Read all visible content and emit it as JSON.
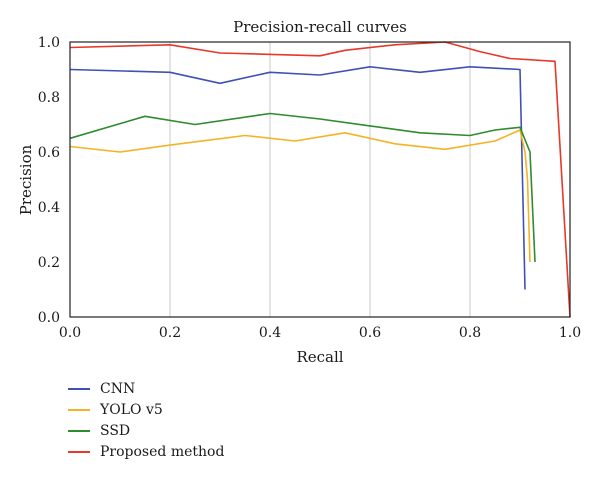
{
  "chart_data": {
    "type": "line",
    "title": "Precision-recall curves",
    "xlabel": "Recall",
    "ylabel": "Precision",
    "xlim": [
      0,
      1
    ],
    "ylim": [
      0,
      1
    ],
    "xticks": [
      "0.0",
      "0.2",
      "0.4",
      "0.6",
      "0.8",
      "1.0"
    ],
    "yticks": [
      "0.0",
      "0.2",
      "0.4",
      "0.6",
      "0.8",
      "1.0"
    ],
    "grid": "vertical",
    "legend_position": "below",
    "series": [
      {
        "name": "CNN",
        "color": "#3f51b5",
        "points": [
          [
            0.0,
            0.9
          ],
          [
            0.2,
            0.89
          ],
          [
            0.3,
            0.85
          ],
          [
            0.4,
            0.89
          ],
          [
            0.5,
            0.88
          ],
          [
            0.6,
            0.91
          ],
          [
            0.7,
            0.89
          ],
          [
            0.8,
            0.91
          ],
          [
            0.9,
            0.9
          ],
          [
            0.905,
            0.5
          ],
          [
            0.91,
            0.1
          ]
        ]
      },
      {
        "name": "YOLO v5",
        "color": "#f4b324",
        "points": [
          [
            0.0,
            0.62
          ],
          [
            0.1,
            0.6
          ],
          [
            0.2,
            0.625
          ],
          [
            0.35,
            0.66
          ],
          [
            0.45,
            0.64
          ],
          [
            0.55,
            0.67
          ],
          [
            0.65,
            0.63
          ],
          [
            0.75,
            0.61
          ],
          [
            0.85,
            0.64
          ],
          [
            0.9,
            0.68
          ],
          [
            0.91,
            0.6
          ],
          [
            0.915,
            0.5
          ],
          [
            0.92,
            0.2
          ]
        ]
      },
      {
        "name": "SSD",
        "color": "#2e8b2e",
        "points": [
          [
            0.0,
            0.65
          ],
          [
            0.15,
            0.73
          ],
          [
            0.25,
            0.7
          ],
          [
            0.4,
            0.74
          ],
          [
            0.5,
            0.72
          ],
          [
            0.6,
            0.695
          ],
          [
            0.7,
            0.67
          ],
          [
            0.8,
            0.66
          ],
          [
            0.85,
            0.68
          ],
          [
            0.9,
            0.69
          ],
          [
            0.92,
            0.6
          ],
          [
            0.93,
            0.2
          ]
        ]
      },
      {
        "name": "Proposed method",
        "color": "#e8372b",
        "points": [
          [
            0.0,
            0.98
          ],
          [
            0.2,
            0.99
          ],
          [
            0.3,
            0.96
          ],
          [
            0.5,
            0.95
          ],
          [
            0.55,
            0.97
          ],
          [
            0.65,
            0.99
          ],
          [
            0.75,
            1.0
          ],
          [
            0.82,
            0.965
          ],
          [
            0.88,
            0.94
          ],
          [
            0.97,
            0.93
          ],
          [
            1.0,
            0.0
          ]
        ]
      }
    ]
  }
}
